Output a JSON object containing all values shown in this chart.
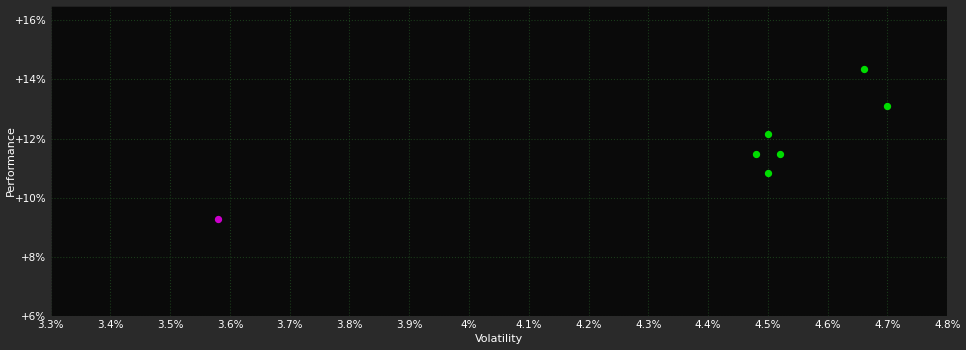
{
  "background_color": "#2a2a2a",
  "plot_bg_color": "#0a0a0a",
  "grid_color": "#1a3a1a",
  "text_color": "#ffffff",
  "xlabel": "Volatility",
  "ylabel": "Performance",
  "xlim": [
    0.033,
    0.048
  ],
  "ylim": [
    0.06,
    0.165
  ],
  "xticks": [
    0.033,
    0.034,
    0.035,
    0.036,
    0.037,
    0.038,
    0.039,
    0.04,
    0.041,
    0.042,
    0.043,
    0.044,
    0.045,
    0.046,
    0.047,
    0.048
  ],
  "xtick_labels": [
    "3.3%",
    "3.4%",
    "3.5%",
    "3.6%",
    "3.7%",
    "3.8%",
    "3.9%",
    "4%",
    "4.1%",
    "4.2%",
    "4.3%",
    "4.4%",
    "4.5%",
    "4.6%",
    "4.7%",
    "4.8%"
  ],
  "yticks": [
    0.06,
    0.08,
    0.1,
    0.12,
    0.14,
    0.16
  ],
  "ytick_labels": [
    "+6%",
    "+8%",
    "+10%",
    "+12%",
    "+14%",
    "+16%"
  ],
  "green_points": [
    [
      0.0466,
      0.1435
    ],
    [
      0.047,
      0.131
    ],
    [
      0.045,
      0.1215
    ],
    [
      0.0448,
      0.1148
    ],
    [
      0.0452,
      0.1148
    ],
    [
      0.045,
      0.1085
    ]
  ],
  "magenta_points": [
    [
      0.0358,
      0.093
    ]
  ],
  "green_color": "#00dd00",
  "magenta_color": "#cc00cc",
  "point_size": 18
}
